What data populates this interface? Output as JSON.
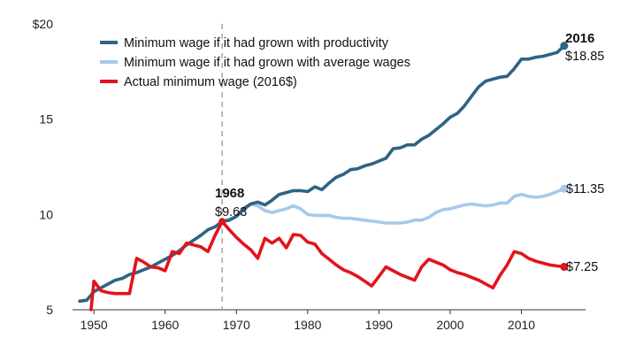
{
  "chart_data": {
    "type": "line",
    "title": "",
    "xlabel": "",
    "ylabel": "",
    "xlim": [
      1947,
      2019
    ],
    "ylim": [
      5,
      20
    ],
    "x_ticks": [
      1950,
      1960,
      1970,
      1980,
      1990,
      2000,
      2010
    ],
    "y_ticks": [
      {
        "value": 5,
        "label": "5"
      },
      {
        "value": 10,
        "label": "10"
      },
      {
        "value": 15,
        "label": "15"
      },
      {
        "value": 20,
        "label": "$20"
      }
    ],
    "grid": false,
    "legend_position": "top-left",
    "reference_line": {
      "x": 1968,
      "style": "dashed"
    },
    "series": [
      {
        "name": "Minimum wage if it had grown with productivity",
        "color": "#2e6384",
        "x": [
          1948,
          1949,
          1950,
          1951,
          1952,
          1953,
          1954,
          1955,
          1956,
          1957,
          1958,
          1959,
          1960,
          1961,
          1962,
          1963,
          1964,
          1965,
          1966,
          1967,
          1968,
          1969,
          1970,
          1971,
          1972,
          1973,
          1974,
          1975,
          1976,
          1977,
          1978,
          1979,
          1980,
          1981,
          1982,
          1983,
          1984,
          1985,
          1986,
          1987,
          1988,
          1989,
          1990,
          1991,
          1992,
          1993,
          1994,
          1995,
          1996,
          1997,
          1998,
          1999,
          2000,
          2001,
          2002,
          2003,
          2004,
          2005,
          2006,
          2007,
          2008,
          2009,
          2010,
          2011,
          2012,
          2013,
          2014,
          2015,
          2016
        ],
        "y": [
          5.45,
          5.5,
          5.95,
          6.15,
          6.35,
          6.55,
          6.65,
          6.85,
          6.95,
          7.1,
          7.25,
          7.45,
          7.65,
          7.85,
          8.1,
          8.4,
          8.65,
          8.9,
          9.2,
          9.35,
          9.63,
          9.7,
          9.9,
          10.3,
          10.55,
          10.65,
          10.5,
          10.75,
          11.05,
          11.15,
          11.25,
          11.25,
          11.2,
          11.45,
          11.3,
          11.65,
          11.95,
          12.1,
          12.35,
          12.4,
          12.55,
          12.65,
          12.8,
          12.95,
          13.45,
          13.5,
          13.65,
          13.65,
          13.95,
          14.15,
          14.45,
          14.75,
          15.1,
          15.3,
          15.7,
          16.2,
          16.7,
          17.0,
          17.1,
          17.2,
          17.25,
          17.65,
          18.15,
          18.15,
          18.25,
          18.3,
          18.4,
          18.5,
          18.85
        ],
        "end_label": "$18.85",
        "end_year_label": "2016"
      },
      {
        "name": "Minimum wage if it had grown with average wages",
        "color": "#a6c9e8",
        "x": [
          1968,
          1969,
          1970,
          1971,
          1972,
          1973,
          1974,
          1975,
          1976,
          1977,
          1978,
          1979,
          1980,
          1981,
          1982,
          1983,
          1984,
          1985,
          1986,
          1987,
          1988,
          1989,
          1990,
          1991,
          1992,
          1993,
          1994,
          1995,
          1996,
          1997,
          1998,
          1999,
          2000,
          2001,
          2002,
          2003,
          2004,
          2005,
          2006,
          2007,
          2008,
          2009,
          2010,
          2011,
          2012,
          2013,
          2014,
          2015,
          2016
        ],
        "y": [
          9.63,
          9.75,
          9.9,
          10.2,
          10.55,
          10.45,
          10.2,
          10.1,
          10.2,
          10.3,
          10.45,
          10.3,
          10.0,
          9.95,
          9.95,
          9.95,
          9.85,
          9.8,
          9.8,
          9.75,
          9.7,
          9.65,
          9.6,
          9.55,
          9.55,
          9.55,
          9.6,
          9.7,
          9.7,
          9.85,
          10.1,
          10.25,
          10.3,
          10.4,
          10.5,
          10.55,
          10.5,
          10.45,
          10.5,
          10.6,
          10.6,
          10.95,
          11.05,
          10.95,
          10.9,
          10.95,
          11.05,
          11.2,
          11.35
        ],
        "end_label": "$11.35"
      },
      {
        "name": "Actual minimum wage (2016$)",
        "color": "#e2131c",
        "x": [
          1949.6,
          1950,
          1951,
          1952,
          1953,
          1954,
          1955,
          1956,
          1957,
          1958,
          1959,
          1960,
          1961,
          1962,
          1963,
          1964,
          1965,
          1966,
          1967,
          1968,
          1969,
          1970,
          1971,
          1972,
          1973,
          1974,
          1975,
          1976,
          1977,
          1978,
          1979,
          1980,
          1981,
          1982,
          1983,
          1984,
          1985,
          1986,
          1987,
          1988,
          1989,
          1990,
          1991,
          1992,
          1993,
          1994,
          1995,
          1996,
          1997,
          1998,
          1999,
          2000,
          2001,
          2002,
          2003,
          2004,
          2005,
          2006,
          2007,
          2008,
          2009,
          2010,
          2011,
          2012,
          2013,
          2014,
          2015,
          2016
        ],
        "y": [
          5.0,
          6.5,
          6.0,
          5.9,
          5.85,
          5.85,
          5.85,
          7.7,
          7.5,
          7.25,
          7.2,
          7.05,
          8.05,
          7.95,
          8.5,
          8.4,
          8.3,
          8.05,
          8.9,
          9.63,
          9.2,
          8.8,
          8.45,
          8.15,
          7.7,
          8.75,
          8.5,
          8.75,
          8.25,
          8.95,
          8.9,
          8.55,
          8.45,
          7.95,
          7.65,
          7.35,
          7.1,
          6.95,
          6.75,
          6.5,
          6.25,
          6.75,
          7.25,
          7.05,
          6.85,
          6.7,
          6.55,
          7.25,
          7.65,
          7.5,
          7.35,
          7.1,
          6.95,
          6.85,
          6.7,
          6.55,
          6.35,
          6.15,
          6.8,
          7.35,
          8.05,
          7.95,
          7.7,
          7.55,
          7.45,
          7.35,
          7.3,
          7.25
        ],
        "end_label": "$7.25"
      }
    ],
    "annotations": [
      {
        "year_label": "1968",
        "value_label": "$9.63",
        "x": 1968,
        "y": 9.63
      }
    ]
  }
}
